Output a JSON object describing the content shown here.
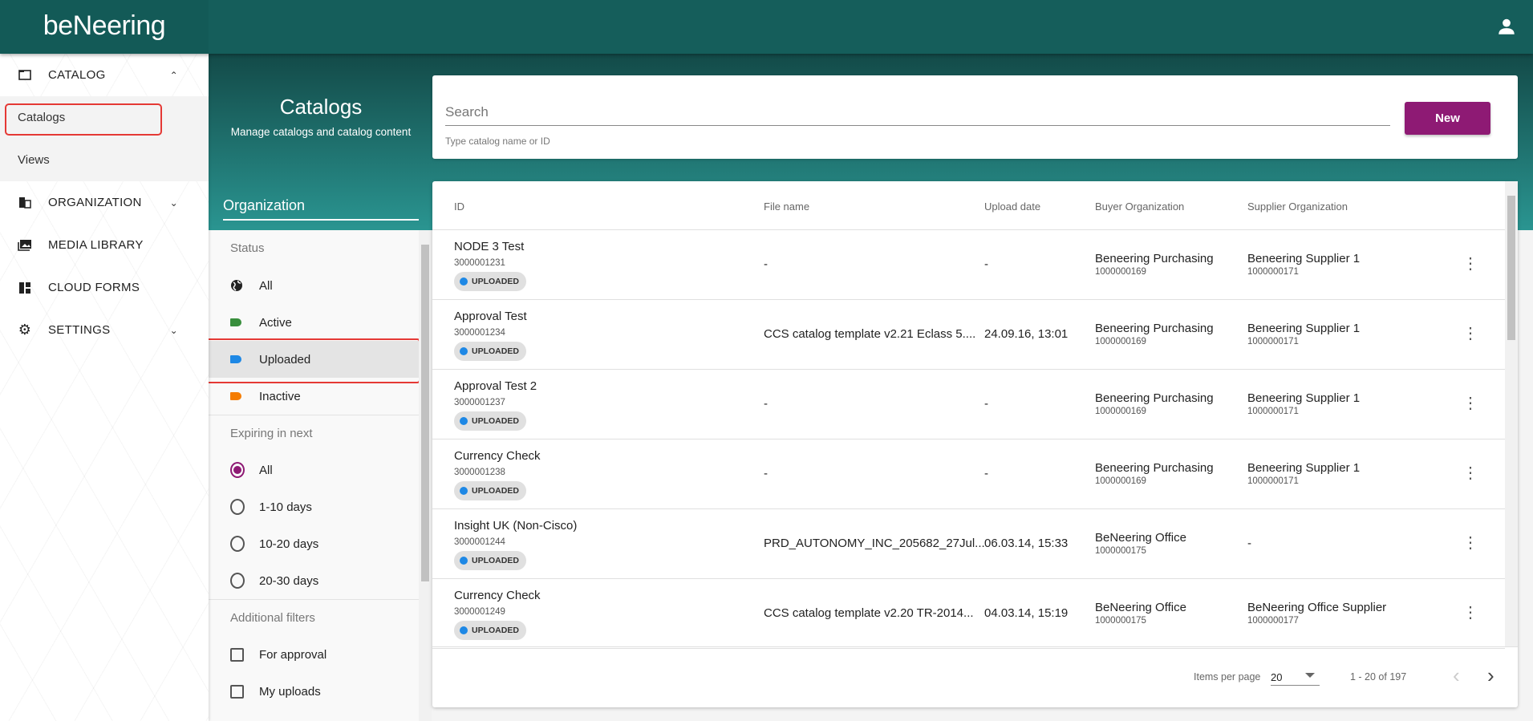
{
  "app": {
    "logo": "beNeering"
  },
  "sidebar": {
    "sections": [
      {
        "label": "CATALOG",
        "icon": "folder-icon",
        "expanded": true,
        "children": [
          {
            "label": "Catalogs",
            "selected": true
          },
          {
            "label": "Views"
          }
        ]
      },
      {
        "label": "ORGANIZATION",
        "icon": "building-icon",
        "expanded": false
      },
      {
        "label": "MEDIA LIBRARY",
        "icon": "image-library-icon"
      },
      {
        "label": "CLOUD FORMS",
        "icon": "dashboard-icon"
      },
      {
        "label": "SETTINGS",
        "icon": "gear-icon",
        "expanded": false
      }
    ]
  },
  "page": {
    "title": "Catalogs",
    "subtitle": "Manage catalogs and catalog content",
    "org_tab": "Organization"
  },
  "filters": {
    "status_header": "Status",
    "status": [
      {
        "label": "All",
        "icon": "globe-icon"
      },
      {
        "label": "Active",
        "color": "#388e3c"
      },
      {
        "label": "Uploaded",
        "color": "#1e88e5",
        "selected": true
      },
      {
        "label": "Inactive",
        "color": "#f57c00"
      }
    ],
    "expiring_header": "Expiring in next",
    "expiring": [
      {
        "label": "All",
        "checked": true
      },
      {
        "label": "1-10 days"
      },
      {
        "label": "10-20 days"
      },
      {
        "label": "20-30 days"
      }
    ],
    "additional_header": "Additional filters",
    "additional": [
      {
        "label": "For approval"
      },
      {
        "label": "My uploads"
      }
    ]
  },
  "search": {
    "placeholder": "Search",
    "hint": "Type catalog name or ID",
    "new_label": "New"
  },
  "table": {
    "columns": [
      "ID",
      "File name",
      "Upload date",
      "Buyer Organization",
      "Supplier Organization"
    ],
    "rows": [
      {
        "name": "NODE 3 Test",
        "id": "3000001231",
        "status": "UPLOADED",
        "file": "-",
        "date": "-",
        "buyer": "Beneering Purchasing",
        "buyer_id": "1000000169",
        "supplier": "Beneering Supplier 1",
        "supplier_id": "1000000171"
      },
      {
        "name": "Approval Test",
        "id": "3000001234",
        "status": "UPLOADED",
        "file": "CCS catalog template v2.21 Eclass 5....",
        "date": "24.09.16, 13:01",
        "buyer": "Beneering Purchasing",
        "buyer_id": "1000000169",
        "supplier": "Beneering Supplier 1",
        "supplier_id": "1000000171"
      },
      {
        "name": "Approval Test 2",
        "id": "3000001237",
        "status": "UPLOADED",
        "file": "-",
        "date": "-",
        "buyer": "Beneering Purchasing",
        "buyer_id": "1000000169",
        "supplier": "Beneering Supplier 1",
        "supplier_id": "1000000171"
      },
      {
        "name": "Currency Check",
        "id": "3000001238",
        "status": "UPLOADED",
        "file": "-",
        "date": "-",
        "buyer": "Beneering Purchasing",
        "buyer_id": "1000000169",
        "supplier": "Beneering Supplier 1",
        "supplier_id": "1000000171"
      },
      {
        "name": "Insight UK (Non-Cisco)",
        "id": "3000001244",
        "status": "UPLOADED",
        "file": "PRD_AUTONOMY_INC_205682_27Jul...",
        "date": "06.03.14, 15:33",
        "buyer": "BeNeering Office",
        "buyer_id": "1000000175",
        "supplier": "-",
        "supplier_id": ""
      },
      {
        "name": "Currency Check",
        "id": "3000001249",
        "status": "UPLOADED",
        "file": "CCS catalog template v2.20 TR-2014...",
        "date": "04.03.14, 15:19",
        "buyer": "BeNeering Office",
        "buyer_id": "1000000175",
        "supplier": "BeNeering Office Supplier",
        "supplier_id": "1000000177"
      }
    ]
  },
  "pagination": {
    "items_per_page_label": "Items per page",
    "items_per_page": "20",
    "range": "1 - 20 of 197"
  },
  "colors": {
    "header": "#155e5b",
    "accent": "#8e1a74",
    "uploaded": "#1e88e5"
  }
}
